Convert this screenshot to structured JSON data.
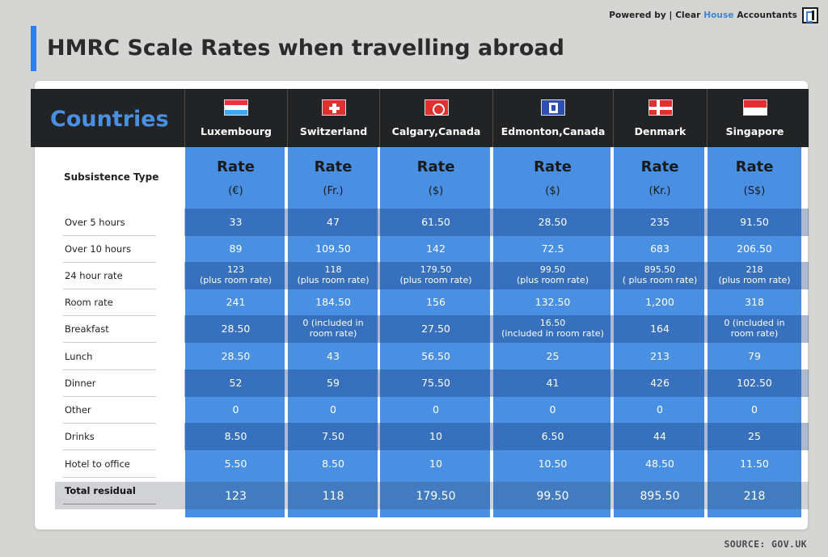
{
  "header": {
    "powered_prefix": "Powered by | Clear",
    "powered_house": "House",
    "powered_suffix": "Accountants",
    "title": "HMRC Scale Rates when travelling abroad"
  },
  "table": {
    "countries_label": "Countries",
    "subsistence_label": "Subsistence Type",
    "rate_word": "Rate",
    "columns": [
      {
        "name": "Luxembourg",
        "unit": "(€)",
        "flag": "luxembourg-flag-icon"
      },
      {
        "name": "Switzerland",
        "unit": "(Fr.)",
        "flag": "switzerland-flag-icon"
      },
      {
        "name": "Calgary,Canada",
        "unit": "($)",
        "flag": "calgary-flag-icon"
      },
      {
        "name": "Edmonton,Canada",
        "unit": "($)",
        "flag": "edmonton-flag-icon"
      },
      {
        "name": "Denmark",
        "unit": "(Kr.)",
        "flag": "denmark-flag-icon"
      },
      {
        "name": "Singapore",
        "unit": "(S$)",
        "flag": "singapore-flag-icon"
      }
    ],
    "rows": [
      {
        "label": "Over 5 hours",
        "values": [
          "33",
          "47",
          "61.50",
          "28.50",
          "235",
          "91.50"
        ]
      },
      {
        "label": "Over 10 hours",
        "values": [
          "89",
          "109.50",
          "142",
          "72.5",
          "683",
          "206.50"
        ]
      },
      {
        "label": "24 hour rate",
        "values": [
          "123\n(plus room rate)",
          "118\n(plus room rate)",
          "179.50\n(plus room rate)",
          "99.50\n(plus room rate)",
          "895.50\n( plus room rate)",
          "218\n(plus room rate)"
        ]
      },
      {
        "label": "Room rate",
        "values": [
          "241",
          "184.50",
          "156",
          "132.50",
          "1,200",
          "318"
        ]
      },
      {
        "label": "Breakfast",
        "values": [
          "28.50",
          "0 (included in\nroom rate)",
          "27.50",
          "16.50\n(included in room rate)",
          "164",
          "0 (included in\nroom rate)"
        ]
      },
      {
        "label": "Lunch",
        "values": [
          "28.50",
          "43",
          "56.50",
          "25",
          "213",
          "79"
        ]
      },
      {
        "label": "Dinner",
        "values": [
          "52",
          "59",
          "75.50",
          "41",
          "426",
          "102.50"
        ]
      },
      {
        "label": "Other",
        "values": [
          "0",
          "0",
          "0",
          "0",
          "0",
          "0"
        ]
      },
      {
        "label": "Drinks",
        "values": [
          "8.50",
          "7.50",
          "10",
          "6.50",
          "44",
          "25"
        ]
      },
      {
        "label": "Hotel to office",
        "values": [
          "5.50",
          "8.50",
          "10",
          "10.50",
          "48.50",
          "11.50"
        ]
      }
    ],
    "total": {
      "label": "Total residual",
      "values": [
        "123",
        "118",
        "179.50",
        "99.50",
        "895.50",
        "218"
      ]
    }
  },
  "footer": {
    "source": "SOURCE: GOV.UK"
  },
  "colors": {
    "accent": "#2f80ed",
    "column_blue": "#4a90e2",
    "header_dark": "#222324"
  }
}
